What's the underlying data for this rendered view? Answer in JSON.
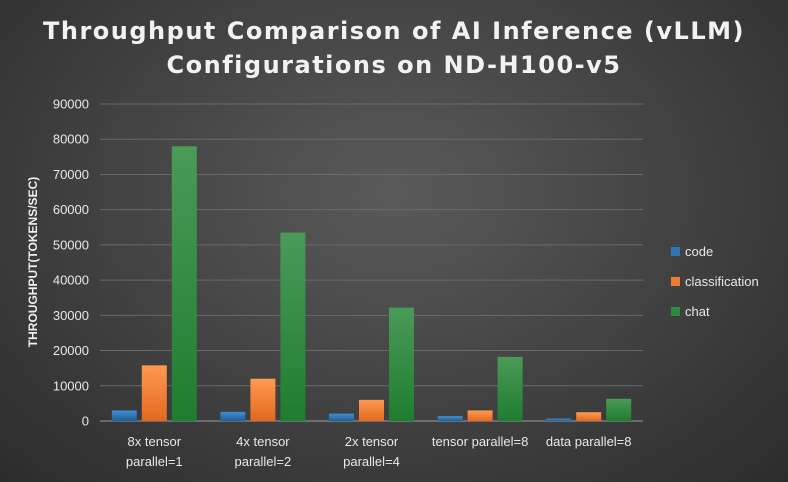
{
  "chart_data": {
    "type": "bar",
    "title_lines": [
      "Throughput Comparison of AI Inference (vLLM)",
      "Configurations on ND-H100-v5"
    ],
    "ylabel": "THROUGHPUT(TOKENS/SEC)",
    "xlabel": "",
    "ylim": [
      0,
      90000
    ],
    "yticks": [
      0,
      10000,
      20000,
      30000,
      40000,
      50000,
      60000,
      70000,
      80000,
      90000
    ],
    "grid": true,
    "legend_position": "right",
    "categories": [
      [
        "8x tensor",
        "parallel=1"
      ],
      [
        "4x tensor",
        "parallel=2"
      ],
      [
        "2x tensor",
        "parallel=4"
      ],
      [
        "tensor parallel=8"
      ],
      [
        "data parallel=8"
      ]
    ],
    "series": [
      {
        "name": "code",
        "color": "#2e75b6",
        "values": [
          3000,
          2600,
          2100,
          1400,
          700
        ]
      },
      {
        "name": "classification",
        "color": "#ed7d31",
        "values": [
          15800,
          12000,
          6000,
          3000,
          2500
        ]
      },
      {
        "name": "chat",
        "color": "#2e8b3e",
        "values": [
          78000,
          53500,
          32200,
          18200,
          6300
        ]
      }
    ]
  }
}
